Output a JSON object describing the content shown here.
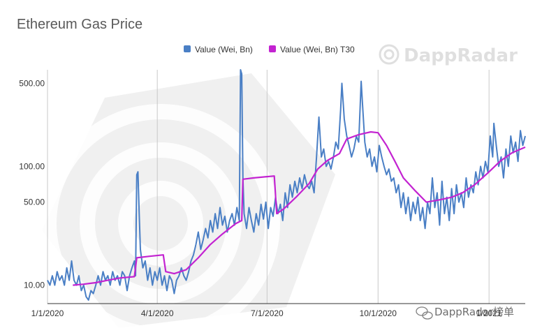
{
  "chart_data": {
    "type": "line",
    "title": "Ethereum Gas Price",
    "xlabel": "",
    "ylabel": "",
    "y_scale": "log",
    "ylim": [
      7,
      650
    ],
    "x_range": [
      "2020-01-01",
      "2021-01-31"
    ],
    "x_ticks": [
      {
        "date": "2020-01-01",
        "label": "1/1/2020"
      },
      {
        "date": "2020-04-01",
        "label": "4/1/2020"
      },
      {
        "date": "2020-07-01",
        "label": "7/1/2020"
      },
      {
        "date": "2020-10-01",
        "label": "10/1/2020"
      },
      {
        "date": "2021-01-01",
        "label": "1/2021"
      }
    ],
    "y_ticks": [
      {
        "value": 10,
        "label": "10.00"
      },
      {
        "value": 50,
        "label": "50.00"
      },
      {
        "value": 100,
        "label": "100.00"
      },
      {
        "value": 500,
        "label": "500.00"
      }
    ],
    "grid": "vertical",
    "legend_position": "top",
    "series": [
      {
        "name": "Value (Wei, Bn)",
        "color": "#4a7fc5",
        "points": [
          [
            "2020-01-01",
            11
          ],
          [
            "2020-01-03",
            10
          ],
          [
            "2020-01-05",
            12
          ],
          [
            "2020-01-07",
            10
          ],
          [
            "2020-01-09",
            13
          ],
          [
            "2020-01-11",
            11
          ],
          [
            "2020-01-13",
            12
          ],
          [
            "2020-01-15",
            10
          ],
          [
            "2020-01-17",
            14
          ],
          [
            "2020-01-19",
            11
          ],
          [
            "2020-01-21",
            16
          ],
          [
            "2020-01-23",
            11
          ],
          [
            "2020-01-25",
            10
          ],
          [
            "2020-01-27",
            12
          ],
          [
            "2020-01-29",
            9
          ],
          [
            "2020-01-31",
            10
          ],
          [
            "2020-02-02",
            8
          ],
          [
            "2020-02-04",
            7.5
          ],
          [
            "2020-02-06",
            9
          ],
          [
            "2020-02-08",
            8.5
          ],
          [
            "2020-02-10",
            10
          ],
          [
            "2020-02-12",
            12
          ],
          [
            "2020-02-14",
            10
          ],
          [
            "2020-02-16",
            13
          ],
          [
            "2020-02-18",
            11
          ],
          [
            "2020-02-20",
            12
          ],
          [
            "2020-02-22",
            10
          ],
          [
            "2020-02-24",
            13
          ],
          [
            "2020-02-26",
            11
          ],
          [
            "2020-02-28",
            12
          ],
          [
            "2020-03-01",
            10
          ],
          [
            "2020-03-03",
            13
          ],
          [
            "2020-03-05",
            12
          ],
          [
            "2020-03-07",
            9
          ],
          [
            "2020-03-09",
            12
          ],
          [
            "2020-03-11",
            14
          ],
          [
            "2020-03-13",
            16
          ],
          [
            "2020-03-14",
            12
          ],
          [
            "2020-03-15",
            85
          ],
          [
            "2020-03-16",
            90
          ],
          [
            "2020-03-17",
            40
          ],
          [
            "2020-03-18",
            20
          ],
          [
            "2020-03-20",
            14
          ],
          [
            "2020-03-22",
            16
          ],
          [
            "2020-03-24",
            11
          ],
          [
            "2020-03-26",
            14
          ],
          [
            "2020-03-28",
            10
          ],
          [
            "2020-03-30",
            13
          ],
          [
            "2020-04-01",
            11
          ],
          [
            "2020-04-03",
            14
          ],
          [
            "2020-04-05",
            10
          ],
          [
            "2020-04-07",
            12
          ],
          [
            "2020-04-09",
            9
          ],
          [
            "2020-04-11",
            12
          ],
          [
            "2020-04-13",
            11
          ],
          [
            "2020-04-15",
            8.5
          ],
          [
            "2020-04-17",
            11
          ],
          [
            "2020-04-19",
            12
          ],
          [
            "2020-04-21",
            14
          ],
          [
            "2020-04-23",
            12
          ],
          [
            "2020-04-25",
            11
          ],
          [
            "2020-04-27",
            13
          ],
          [
            "2020-04-29",
            16
          ],
          [
            "2020-05-01",
            18
          ],
          [
            "2020-05-03",
            22
          ],
          [
            "2020-05-05",
            28
          ],
          [
            "2020-05-07",
            20
          ],
          [
            "2020-05-09",
            24
          ],
          [
            "2020-05-11",
            30
          ],
          [
            "2020-05-13",
            25
          ],
          [
            "2020-05-15",
            35
          ],
          [
            "2020-05-17",
            28
          ],
          [
            "2020-05-19",
            40
          ],
          [
            "2020-05-21",
            30
          ],
          [
            "2020-05-23",
            45
          ],
          [
            "2020-05-25",
            32
          ],
          [
            "2020-05-27",
            38
          ],
          [
            "2020-05-29",
            28
          ],
          [
            "2020-05-31",
            35
          ],
          [
            "2020-06-02",
            40
          ],
          [
            "2020-06-04",
            32
          ],
          [
            "2020-06-06",
            45
          ],
          [
            "2020-06-08",
            35
          ],
          [
            "2020-06-09",
            650
          ],
          [
            "2020-06-10",
            600
          ],
          [
            "2020-06-11",
            80
          ],
          [
            "2020-06-12",
            40
          ],
          [
            "2020-06-14",
            30
          ],
          [
            "2020-06-16",
            45
          ],
          [
            "2020-06-18",
            35
          ],
          [
            "2020-06-20",
            28
          ],
          [
            "2020-06-22",
            40
          ],
          [
            "2020-06-24",
            32
          ],
          [
            "2020-06-26",
            48
          ],
          [
            "2020-06-28",
            36
          ],
          [
            "2020-06-30",
            50
          ],
          [
            "2020-07-02",
            30
          ],
          [
            "2020-07-04",
            45
          ],
          [
            "2020-07-06",
            38
          ],
          [
            "2020-07-08",
            55
          ],
          [
            "2020-07-10",
            40
          ],
          [
            "2020-07-12",
            48
          ],
          [
            "2020-07-14",
            35
          ],
          [
            "2020-07-16",
            60
          ],
          [
            "2020-07-18",
            45
          ],
          [
            "2020-07-20",
            70
          ],
          [
            "2020-07-22",
            55
          ],
          [
            "2020-07-24",
            75
          ],
          [
            "2020-07-26",
            60
          ],
          [
            "2020-07-28",
            80
          ],
          [
            "2020-07-30",
            65
          ],
          [
            "2020-08-01",
            85
          ],
          [
            "2020-08-03",
            70
          ],
          [
            "2020-08-05",
            65
          ],
          [
            "2020-08-07",
            75
          ],
          [
            "2020-08-09",
            60
          ],
          [
            "2020-08-11",
            120
          ],
          [
            "2020-08-13",
            260
          ],
          [
            "2020-08-15",
            120
          ],
          [
            "2020-08-17",
            140
          ],
          [
            "2020-08-19",
            100
          ],
          [
            "2020-08-21",
            110
          ],
          [
            "2020-08-23",
            95
          ],
          [
            "2020-08-25",
            120
          ],
          [
            "2020-08-27",
            160
          ],
          [
            "2020-08-29",
            140
          ],
          [
            "2020-08-31",
            300
          ],
          [
            "2020-09-01",
            500
          ],
          [
            "2020-09-03",
            250
          ],
          [
            "2020-09-05",
            180
          ],
          [
            "2020-09-07",
            150
          ],
          [
            "2020-09-09",
            120
          ],
          [
            "2020-09-11",
            140
          ],
          [
            "2020-09-13",
            180
          ],
          [
            "2020-09-15",
            160
          ],
          [
            "2020-09-17",
            520
          ],
          [
            "2020-09-18",
            350
          ],
          [
            "2020-09-20",
            160
          ],
          [
            "2020-09-22",
            120
          ],
          [
            "2020-09-24",
            140
          ],
          [
            "2020-09-26",
            100
          ],
          [
            "2020-09-28",
            120
          ],
          [
            "2020-09-30",
            90
          ],
          [
            "2020-10-02",
            150
          ],
          [
            "2020-10-04",
            120
          ],
          [
            "2020-10-06",
            100
          ],
          [
            "2020-10-08",
            85
          ],
          [
            "2020-10-10",
            95
          ],
          [
            "2020-10-12",
            75
          ],
          [
            "2020-10-14",
            80
          ],
          [
            "2020-10-16",
            60
          ],
          [
            "2020-10-18",
            70
          ],
          [
            "2020-10-20",
            45
          ],
          [
            "2020-10-22",
            60
          ],
          [
            "2020-10-24",
            40
          ],
          [
            "2020-10-26",
            55
          ],
          [
            "2020-10-28",
            35
          ],
          [
            "2020-10-30",
            50
          ],
          [
            "2020-11-01",
            40
          ],
          [
            "2020-11-03",
            55
          ],
          [
            "2020-11-05",
            35
          ],
          [
            "2020-11-07",
            45
          ],
          [
            "2020-11-09",
            30
          ],
          [
            "2020-11-11",
            50
          ],
          [
            "2020-11-13",
            40
          ],
          [
            "2020-11-15",
            80
          ],
          [
            "2020-11-17",
            45
          ],
          [
            "2020-11-19",
            60
          ],
          [
            "2020-11-21",
            32
          ],
          [
            "2020-11-23",
            75
          ],
          [
            "2020-11-25",
            40
          ],
          [
            "2020-11-27",
            55
          ],
          [
            "2020-11-29",
            35
          ],
          [
            "2020-12-01",
            65
          ],
          [
            "2020-12-03",
            40
          ],
          [
            "2020-12-05",
            70
          ],
          [
            "2020-12-07",
            50
          ],
          [
            "2020-12-09",
            60
          ],
          [
            "2020-12-11",
            45
          ],
          [
            "2020-12-13",
            80
          ],
          [
            "2020-12-15",
            55
          ],
          [
            "2020-12-17",
            70
          ],
          [
            "2020-12-19",
            60
          ],
          [
            "2020-12-21",
            90
          ],
          [
            "2020-12-23",
            70
          ],
          [
            "2020-12-25",
            100
          ],
          [
            "2020-12-27",
            80
          ],
          [
            "2020-12-29",
            110
          ],
          [
            "2020-12-31",
            90
          ],
          [
            "2021-01-02",
            180
          ],
          [
            "2021-01-04",
            120
          ],
          [
            "2021-01-05",
            230
          ],
          [
            "2021-01-07",
            150
          ],
          [
            "2021-01-09",
            100
          ],
          [
            "2021-01-11",
            120
          ],
          [
            "2021-01-13",
            80
          ],
          [
            "2021-01-15",
            140
          ],
          [
            "2021-01-17",
            100
          ],
          [
            "2021-01-19",
            180
          ],
          [
            "2021-01-21",
            130
          ],
          [
            "2021-01-23",
            160
          ],
          [
            "2021-01-25",
            110
          ],
          [
            "2021-01-27",
            200
          ],
          [
            "2021-01-29",
            150
          ],
          [
            "2021-01-31",
            180
          ]
        ]
      },
      {
        "name": "Value (Wei, Bn) T30",
        "color": "#c323d1",
        "points": [
          [
            "2020-01-22",
            10
          ],
          [
            "2020-01-31",
            10.2
          ],
          [
            "2020-02-10",
            10.5
          ],
          [
            "2020-02-20",
            11
          ],
          [
            "2020-03-01",
            11.5
          ],
          [
            "2020-03-13",
            11.8
          ],
          [
            "2020-03-15",
            17
          ],
          [
            "2020-03-25",
            17.5
          ],
          [
            "2020-04-06",
            18
          ],
          [
            "2020-04-08",
            13
          ],
          [
            "2020-04-15",
            12.5
          ],
          [
            "2020-04-25",
            13.5
          ],
          [
            "2020-05-05",
            17
          ],
          [
            "2020-05-15",
            22
          ],
          [
            "2020-05-25",
            27
          ],
          [
            "2020-06-05",
            33
          ],
          [
            "2020-06-10",
            35
          ],
          [
            "2020-06-11",
            78
          ],
          [
            "2020-06-20",
            80
          ],
          [
            "2020-07-01",
            82
          ],
          [
            "2020-07-07",
            83
          ],
          [
            "2020-07-09",
            40
          ],
          [
            "2020-07-15",
            44
          ],
          [
            "2020-07-25",
            55
          ],
          [
            "2020-08-05",
            72
          ],
          [
            "2020-08-12",
            95
          ],
          [
            "2020-08-20",
            112
          ],
          [
            "2020-08-30",
            128
          ],
          [
            "2020-09-05",
            170
          ],
          [
            "2020-09-15",
            185
          ],
          [
            "2020-09-25",
            195
          ],
          [
            "2020-10-01",
            192
          ],
          [
            "2020-10-08",
            150
          ],
          [
            "2020-10-15",
            110
          ],
          [
            "2020-10-22",
            80
          ],
          [
            "2020-11-01",
            62
          ],
          [
            "2020-11-10",
            50
          ],
          [
            "2020-11-20",
            52
          ],
          [
            "2020-12-01",
            55
          ],
          [
            "2020-12-10",
            60
          ],
          [
            "2020-12-20",
            70
          ],
          [
            "2020-12-31",
            88
          ],
          [
            "2021-01-10",
            110
          ],
          [
            "2021-01-20",
            130
          ],
          [
            "2021-01-31",
            145
          ]
        ]
      }
    ]
  },
  "watermark": {
    "logo_text": "DappRadar"
  },
  "caption": {
    "text": "DappRadar榜单"
  }
}
